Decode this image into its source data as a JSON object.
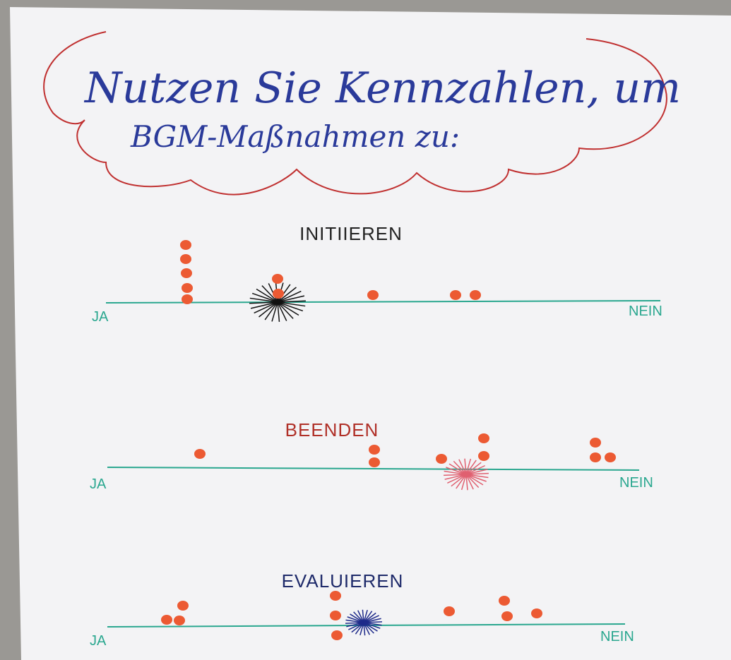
{
  "header": {
    "title_line_1": "Nutzen Sie Kennzahlen, um",
    "title_line_2": "BGM-Maßnahmen zu:"
  },
  "sections": [
    {
      "heading": "INITIIEREN",
      "left": "JA",
      "right": "NEIN"
    },
    {
      "heading": "BEENDEN",
      "left": "JA",
      "right": "NEIN"
    },
    {
      "heading": "EVALUIEREN",
      "left": "JA",
      "right": "NEIN"
    }
  ]
}
